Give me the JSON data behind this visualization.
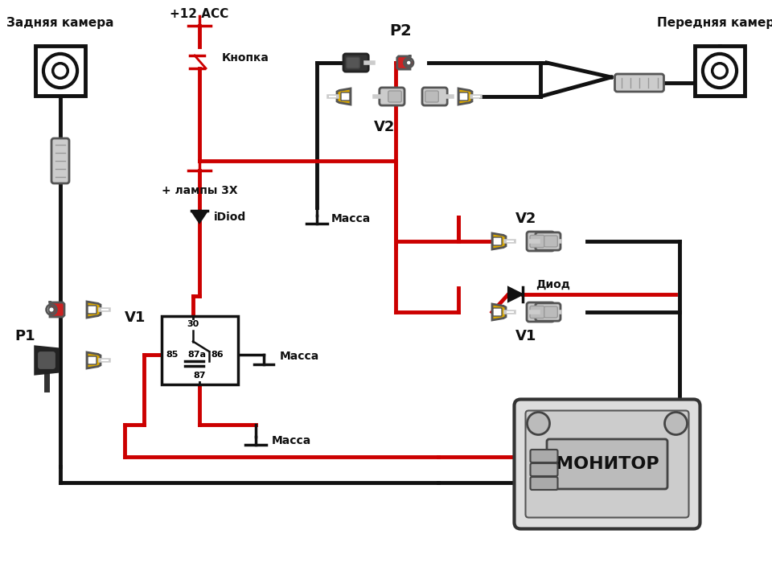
{
  "bg_color": "#ffffff",
  "rear_camera_label": "Задняя камера",
  "front_camera_label": "Передняя камера",
  "monitor_label": "МОНИТОР",
  "p1_label": "P1",
  "p2_label": "P2",
  "v1_label_left": "V1",
  "v2_label_left": "V2",
  "v2_label_right": "V2",
  "v1_label_right": "V1",
  "plus12_label": "+12 ACC",
  "knopka_label": "Кнопка",
  "lampa_label": "+ лампы 3Х",
  "idiod_label": "iDiod",
  "massa1_label": "Масса",
  "massa2_label": "Масса",
  "massa3_label": "Масса",
  "diod_label": "Диод",
  "relay_30": "30",
  "relay_85": "85",
  "relay_87a": "87a",
  "relay_86": "86",
  "relay_87": "87",
  "red": "#cc0000",
  "black": "#111111",
  "yellow": "#ddaa00",
  "gray": "#999999",
  "lgray": "#cccccc",
  "white": "#ffffff",
  "dark_gray": "#555555"
}
